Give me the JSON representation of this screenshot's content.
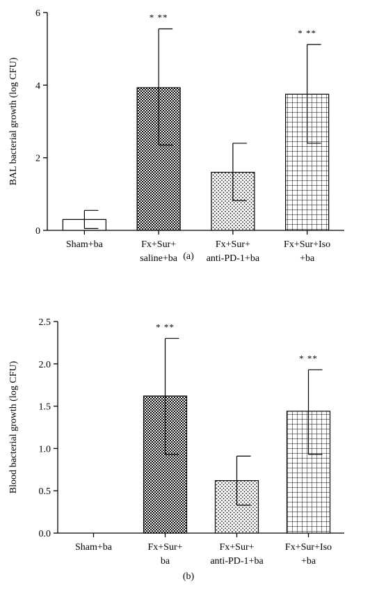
{
  "chart_data": [
    {
      "type": "bar",
      "panel": "(a)",
      "ylabel": "BAL bacterial growth (log CFU)",
      "ylim": [
        0,
        6
      ],
      "yticks": [
        "0",
        "2",
        "4",
        "6"
      ],
      "yticks_values": [
        0,
        2,
        4,
        6
      ],
      "categories": [
        [
          "Sham+ba"
        ],
        [
          "Fx+Sur+",
          "saline+ba"
        ],
        [
          "Fx+Sur+",
          "anti-PD-1+ba"
        ],
        [
          "Fx+Sur+Iso",
          "+ba"
        ]
      ],
      "values": [
        0.3,
        3.93,
        1.6,
        3.75
      ],
      "error_upper": [
        0.55,
        5.55,
        2.4,
        5.12
      ],
      "error_lower": [
        0.05,
        2.35,
        0.82,
        2.4
      ],
      "patterns": [
        "none",
        "checker",
        "dots",
        "grid"
      ],
      "annotations": [
        "",
        "* **",
        "",
        "* **"
      ]
    },
    {
      "type": "bar",
      "panel": "(b)",
      "ylabel": "Blood bacterial growth (log CFU)",
      "ylim": [
        0,
        2.5
      ],
      "yticks": [
        "0.0",
        "0.5",
        "1.0",
        "1.5",
        "2.0",
        "2.5"
      ],
      "yticks_values": [
        0,
        0.5,
        1.0,
        1.5,
        2.0,
        2.5
      ],
      "categories": [
        [
          "Sham+ba"
        ],
        [
          "Fx+Sur+",
          "ba"
        ],
        [
          "Fx+Sur+",
          "anti-PD-1+ba"
        ],
        [
          "Fx+Sur+Iso",
          "+ba"
        ]
      ],
      "values": [
        0.0,
        1.62,
        0.62,
        1.44
      ],
      "error_upper": [
        0.0,
        2.3,
        0.91,
        1.93
      ],
      "error_lower": [
        0.0,
        0.93,
        0.33,
        0.93
      ],
      "patterns": [
        "none",
        "checker",
        "dots",
        "grid"
      ],
      "annotations": [
        "",
        "* **",
        "",
        "* **"
      ]
    }
  ]
}
